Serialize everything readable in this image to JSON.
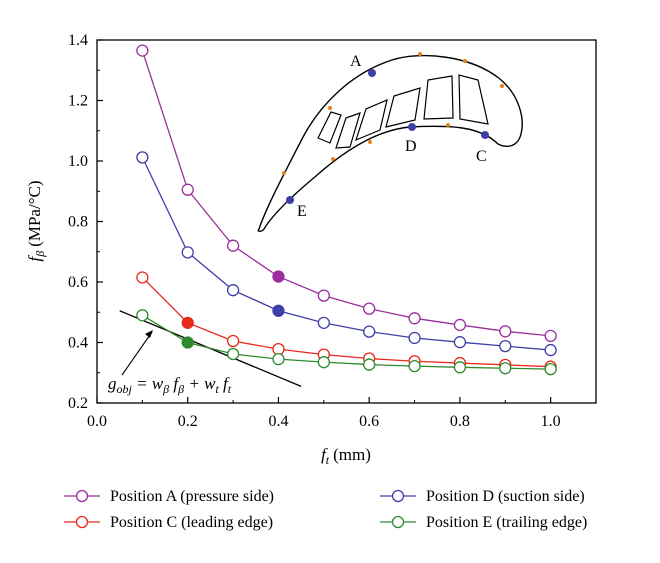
{
  "chart_data": {
    "type": "line",
    "title": "",
    "xlabel": {
      "main": "f",
      "sub": "t",
      "unit": "(mm)"
    },
    "ylabel": {
      "main": "f",
      "sub": "β",
      "unit": "(MPa/°C)"
    },
    "xlim": [
      0.0,
      1.1
    ],
    "ylim": [
      0.2,
      1.4
    ],
    "xticks": [
      "0.0",
      "0.2",
      "0.4",
      "0.6",
      "0.8",
      "1.0"
    ],
    "yticks": [
      "0.2",
      "0.4",
      "0.6",
      "0.8",
      "1.0",
      "1.2",
      "1.4"
    ],
    "x": [
      0.1,
      0.2,
      0.3,
      0.4,
      0.5,
      0.6,
      0.7,
      0.8,
      0.9,
      1.0
    ],
    "series": [
      {
        "name": "Position A (pressure side)",
        "color": "#9B2E9E",
        "values": [
          1.365,
          0.905,
          0.72,
          0.618,
          0.555,
          0.512,
          0.48,
          0.458,
          0.437,
          0.422
        ],
        "highlight_x": 0.4
      },
      {
        "name": "Position D (suction side)",
        "color": "#3F3FA8",
        "values": [
          1.012,
          0.698,
          0.573,
          0.505,
          0.465,
          0.436,
          0.415,
          0.401,
          0.388,
          0.375
        ],
        "highlight_x": 0.4
      },
      {
        "name": "Position C (leading edge)",
        "color": "#E8291C",
        "values": [
          0.615,
          0.465,
          0.405,
          0.378,
          0.36,
          0.347,
          0.338,
          0.332,
          0.326,
          0.32
        ],
        "highlight_x": 0.2
      },
      {
        "name": "Position E (trailing edge)",
        "color": "#2E8B2E",
        "values": [
          0.49,
          0.4,
          0.362,
          0.345,
          0.335,
          0.327,
          0.322,
          0.318,
          0.315,
          0.312
        ],
        "highlight_x": 0.2
      }
    ],
    "legend": {
      "placement": "bottom",
      "order": [
        "Position A (pressure side)",
        "Position D (suction side)",
        "Position C (leading edge)",
        "Position E (trailing edge)"
      ]
    },
    "annotation": {
      "equation": "g_obj = w_β f_β + w_t f_t",
      "line_points": [
        [
          0.05,
          0.505
        ],
        [
          0.45,
          0.255
        ]
      ]
    },
    "inset": {
      "type": "blade-cross-section",
      "labels": [
        "A",
        "D",
        "C",
        "E"
      ],
      "point_color": "#3F3FA8",
      "sample_color": "#E8801C"
    },
    "grid": false
  }
}
